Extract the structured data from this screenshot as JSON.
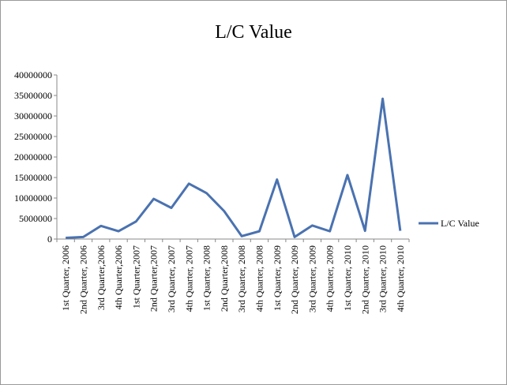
{
  "chart_data": {
    "type": "line",
    "title": "L/C Value",
    "categories": [
      "1st Quarter, 2006",
      "2nd Quarter, 2006",
      "3rd Quarter,2006",
      "4th Quarter,2006",
      "1st Quarter,2007",
      "2nd Quarter,2007",
      "3rd Quarter, 2007",
      "4th Quarter, 2007",
      "1st Quarter, 2008",
      "2nd Quarter,2008",
      "3rd Quarter, 2008",
      "4th Quarter, 2008",
      "1st Quarter, 2009",
      "2nd Quarter, 2009",
      "3rd Quarter, 2009",
      "4th Quarter, 2009",
      "1st Quarter, 2010",
      "2nd Quarter, 2010",
      "3rd Quarter, 2010",
      "4th Quarter, 2010"
    ],
    "series": [
      {
        "name": "L/C Value",
        "color": "#4a72b0",
        "values": [
          300000,
          500000,
          3200000,
          1900000,
          4300000,
          9800000,
          7600000,
          13500000,
          11200000,
          6800000,
          700000,
          1900000,
          14500000,
          500000,
          3300000,
          1900000,
          15600000,
          2000000,
          34200000,
          2000000
        ]
      }
    ],
    "ylim": [
      0,
      40000000
    ],
    "yticks": [
      0,
      5000000,
      10000000,
      15000000,
      20000000,
      25000000,
      30000000,
      35000000,
      40000000
    ],
    "legend": "right"
  }
}
